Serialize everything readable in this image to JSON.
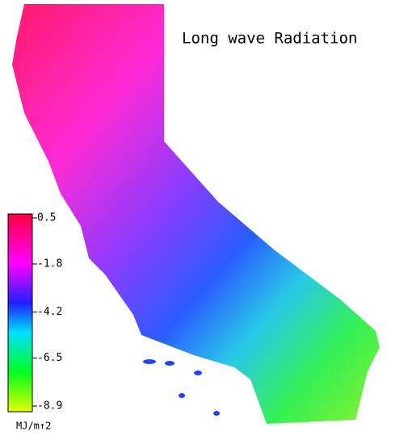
{
  "title": "Long wave Radiation",
  "colorbar": {
    "ticks": [
      0.5,
      -1.8,
      -4.2,
      -6.5,
      -8.9
    ],
    "unit": "MJ/m↑2"
  }
}
